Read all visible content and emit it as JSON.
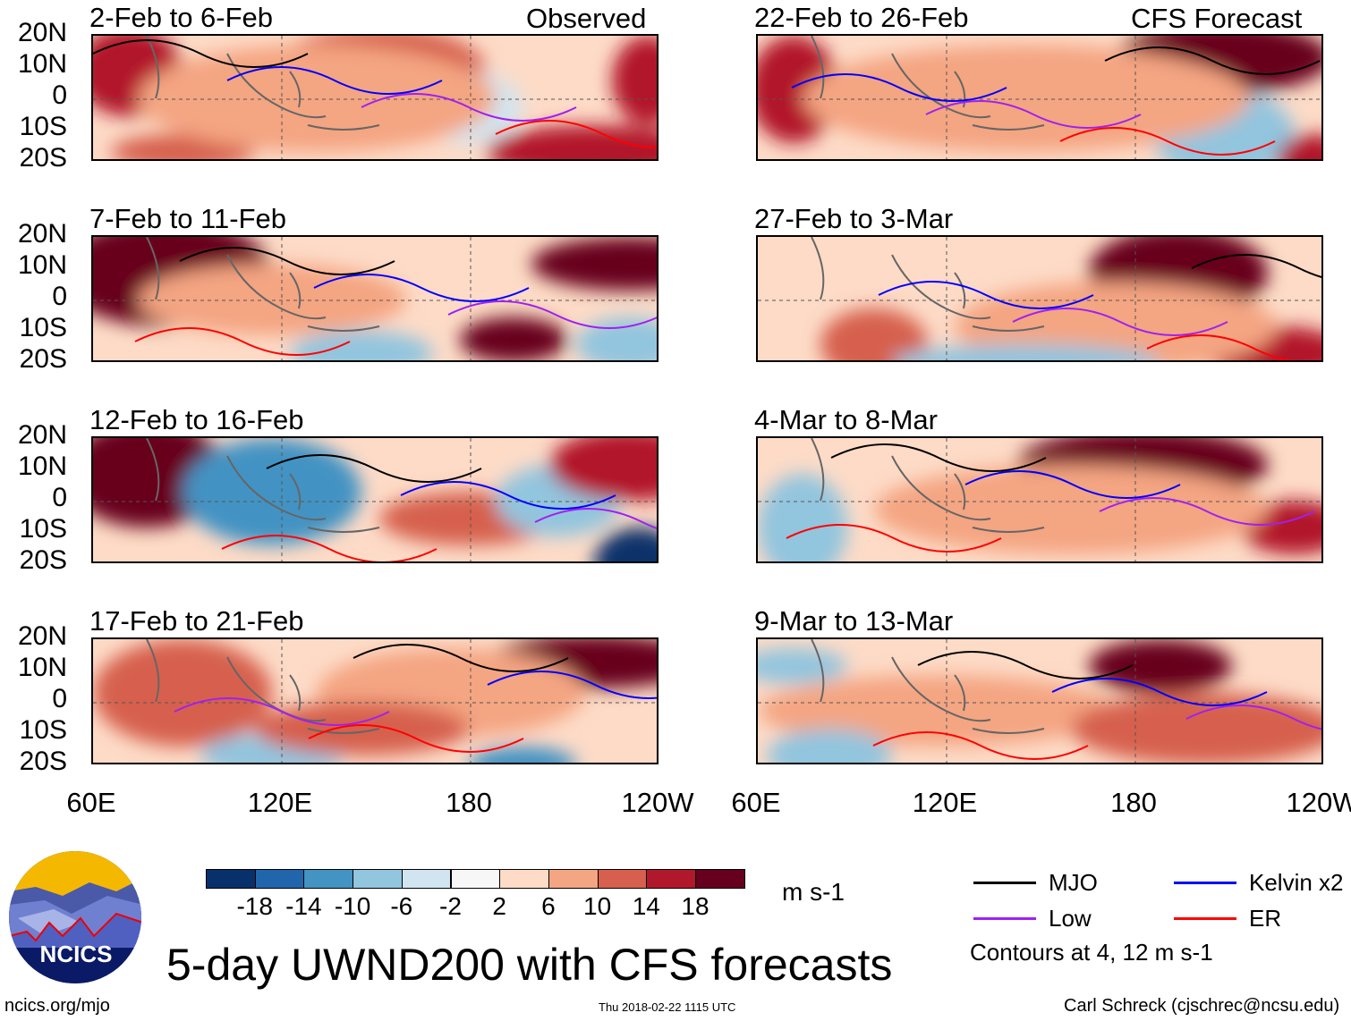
{
  "figure": {
    "title": "5-day UWND200 with CFS forecasts",
    "url": "ncics.org/mjo",
    "timestamp": "Thu 2018-02-22 1115 UTC",
    "author": "Carl Schreck (cjschrec@ncsu.edu)",
    "logo_text": "NCICS"
  },
  "columns": {
    "left_label": "Observed",
    "right_label": "CFS Forecast"
  },
  "panels": [
    {
      "title": "2-Feb to 6-Feb"
    },
    {
      "title": "7-Feb to 11-Feb"
    },
    {
      "title": "12-Feb to 16-Feb"
    },
    {
      "title": "17-Feb to 21-Feb"
    },
    {
      "title": "22-Feb to 26-Feb"
    },
    {
      "title": "27-Feb to 3-Mar"
    },
    {
      "title": "4-Mar to 8-Mar"
    },
    {
      "title": "9-Mar to 13-Mar"
    }
  ],
  "lat_ticks": [
    "20N",
    "10N",
    "0",
    "10S",
    "20S"
  ],
  "lon_ticks": [
    "60E",
    "120E",
    "180",
    "120W"
  ],
  "colorbar": {
    "unit": "m s-1",
    "labels": [
      "-18",
      "-14",
      "-10",
      "-6",
      "-2",
      "2",
      "6",
      "10",
      "14",
      "18"
    ],
    "colors": [
      "#08306b",
      "#2166ac",
      "#4393c3",
      "#92c5de",
      "#d1e5f0",
      "#f7f7f7",
      "#fddbc7",
      "#f4a582",
      "#d6604d",
      "#b2182b",
      "#67001f"
    ]
  },
  "legend": {
    "items": [
      {
        "label": "MJO",
        "color": "#000000"
      },
      {
        "label": "Kelvin x2",
        "color": "#0000ff"
      },
      {
        "label": "Low",
        "color": "#a020f0"
      },
      {
        "label": "ER",
        "color": "#ff0000"
      }
    ],
    "note": "Contours at 4, 12 m s-1"
  }
}
